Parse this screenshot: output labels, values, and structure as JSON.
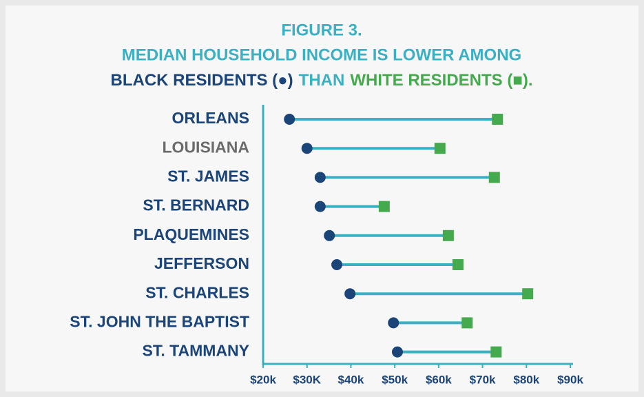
{
  "chart_data": {
    "type": "dumbbell",
    "title": "FIGURE 3.",
    "subtitle": "MEDIAN HOUSEHOLD INCOME IS LOWER AMONG",
    "title_color": "#3ab0c2",
    "legend_connector": "THAN",
    "line_color": "#3ab0c2",
    "axis_color": "#3ab0c2",
    "label_color": "#1b4479",
    "categories": [
      "ORLEANS",
      "LOUISIANA",
      "ST. JAMES",
      "ST. BERNARD",
      "PLAQUEMINES",
      "JEFFERSON",
      "ST. CHARLES",
      "ST. JOHN THE BAPTIST",
      "ST. TAMMANY"
    ],
    "category_colors": [
      "#1b4479",
      "#6b6b6b",
      "#1b4479",
      "#1b4479",
      "#1b4479",
      "#1b4479",
      "#1b4479",
      "#1b4479",
      "#1b4479"
    ],
    "series": [
      {
        "name": "BLACK RESIDENTS (●)",
        "color": "#1b4479",
        "marker": "circle",
        "values": [
          26.0,
          30.0,
          33.0,
          33.0,
          35.1,
          36.8,
          39.8,
          49.7,
          50.6
        ]
      },
      {
        "name": "WHITE RESIDENTS (■).",
        "color": "#45a94e",
        "marker": "square",
        "values": [
          73.4,
          60.3,
          72.7,
          47.6,
          62.2,
          64.4,
          80.3,
          66.5,
          73.1
        ]
      }
    ],
    "xlim": [
      20,
      90
    ],
    "xticks": [
      {
        "value": 20,
        "label": "$20k"
      },
      {
        "value": 30,
        "label": "$30K"
      },
      {
        "value": 40,
        "label": "$40k"
      },
      {
        "value": 50,
        "label": "$50k"
      },
      {
        "value": 60,
        "label": "$60k"
      },
      {
        "value": 70,
        "label": "$70k"
      },
      {
        "value": 80,
        "label": "$80k"
      },
      {
        "value": 90,
        "label": "$90k"
      }
    ]
  }
}
